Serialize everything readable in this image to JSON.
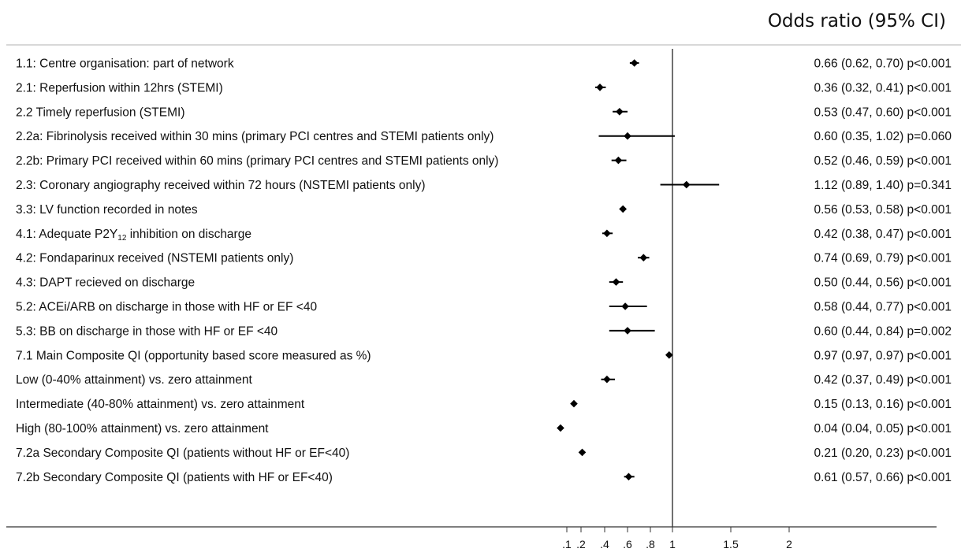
{
  "header": "Odds ratio (95% CI)",
  "chart_data": {
    "type": "forest",
    "title": "",
    "xlabel": "",
    "reference_line": 1,
    "xlim": [
      0.04,
      2.2
    ],
    "x_ticks": [
      {
        "value": 0.1,
        "label": ".1"
      },
      {
        "value": 0.2,
        "label": ".2"
      },
      {
        "value": 0.4,
        "label": ".4"
      },
      {
        "value": 0.6,
        "label": ".6"
      },
      {
        "value": 0.8,
        "label": ".8"
      },
      {
        "value": 1,
        "label": "1"
      },
      {
        "value": 1.5,
        "label": "1.5"
      },
      {
        "value": 2,
        "label": "2"
      }
    ],
    "rows": [
      {
        "label": "1.1: Centre organisation: part of network",
        "or": 0.66,
        "lo": 0.62,
        "hi": 0.7,
        "text": "0.66 (0.62, 0.70) p<0.001"
      },
      {
        "label": "2.1: Reperfusion within 12hrs (STEMI)",
        "or": 0.36,
        "lo": 0.32,
        "hi": 0.41,
        "text": "0.36 (0.32, 0.41) p<0.001"
      },
      {
        "label": "2.2 Timely reperfusion (STEMI)",
        "or": 0.53,
        "lo": 0.47,
        "hi": 0.6,
        "text": "0.53 (0.47, 0.60) p<0.001"
      },
      {
        "label": "2.2a: Fibrinolysis received within 30 mins (primary PCI centres and STEMI patients only)",
        "or": 0.6,
        "lo": 0.35,
        "hi": 1.02,
        "text": "0.60 (0.35, 1.02) p=0.060"
      },
      {
        "label": "2.2b: Primary PCI received within 60 mins (primary PCI centres and STEMI patients only)",
        "or": 0.52,
        "lo": 0.46,
        "hi": 0.59,
        "text": "0.52 (0.46, 0.59) p<0.001"
      },
      {
        "label": "2.3: Coronary angiography received within 72 hours (NSTEMI patients only)",
        "or": 1.12,
        "lo": 0.89,
        "hi": 1.4,
        "text": "1.12 (0.89, 1.40) p=0.341"
      },
      {
        "label": "3.3: LV function recorded in notes",
        "or": 0.56,
        "lo": 0.53,
        "hi": 0.58,
        "text": "0.56 (0.53, 0.58) p<0.001"
      },
      {
        "label": "4.1: Adequate P2Y12 inhibition on discharge",
        "or": 0.42,
        "lo": 0.38,
        "hi": 0.47,
        "text": "0.42 (0.38, 0.47) p<0.001"
      },
      {
        "label": "4.2: Fondaparinux  received (NSTEMI patients only)",
        "or": 0.74,
        "lo": 0.69,
        "hi": 0.79,
        "text": "0.74 (0.69, 0.79) p<0.001"
      },
      {
        "label": "4.3: DAPT recieved on discharge",
        "or": 0.5,
        "lo": 0.44,
        "hi": 0.56,
        "text": "0.50 (0.44, 0.56) p<0.001"
      },
      {
        "label": "5.2: ACEi/ARB on discharge in those with HF or EF <40",
        "or": 0.58,
        "lo": 0.44,
        "hi": 0.77,
        "text": "0.58 (0.44, 0.77) p<0.001"
      },
      {
        "label": "5.3: BB on discharge in those with HF or EF <40",
        "or": 0.6,
        "lo": 0.44,
        "hi": 0.84,
        "text": "0.60 (0.44, 0.84) p=0.002"
      },
      {
        "label": "7.1 Main Composite QI (opportunity based score measured as %)",
        "or": 0.97,
        "lo": 0.97,
        "hi": 0.97,
        "text": "0.97 (0.97, 0.97) p<0.001"
      },
      {
        "label": "Low (0-40% attainment) vs. zero attainment",
        "or": 0.42,
        "lo": 0.37,
        "hi": 0.49,
        "text": "0.42 (0.37, 0.49) p<0.001"
      },
      {
        "label": "Intermediate (40-80% attainment) vs. zero attainment",
        "or": 0.15,
        "lo": 0.13,
        "hi": 0.16,
        "text": "0.15 (0.13, 0.16) p<0.001"
      },
      {
        "label": "High (80-100% attainment) vs. zero attainment",
        "or": 0.04,
        "lo": 0.04,
        "hi": 0.05,
        "text": "0.04 (0.04, 0.05) p<0.001"
      },
      {
        "label": "7.2a Secondary Composite QI (patients without HF or EF<40)",
        "or": 0.21,
        "lo": 0.2,
        "hi": 0.23,
        "text": "0.21 (0.20, 0.23) p<0.001"
      },
      {
        "label": "7.2b Secondary Composite QI (patients with HF or EF<40)",
        "or": 0.61,
        "lo": 0.57,
        "hi": 0.66,
        "text": "0.61 (0.57, 0.66) p<0.001"
      }
    ]
  }
}
